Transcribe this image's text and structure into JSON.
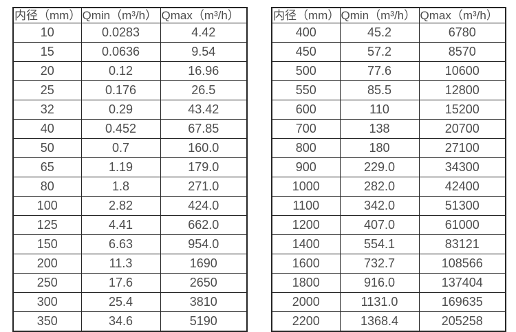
{
  "colors": {
    "border": "#262626",
    "text": "#4d4d4d",
    "background": "#ffffff"
  },
  "tables": [
    {
      "name": "small-diameters",
      "columns": [
        "内径（mm）",
        "Qmin（m³/h）",
        "Qmax（m³/h）"
      ],
      "rows": [
        [
          "10",
          "0.0283",
          "4.42"
        ],
        [
          "15",
          "0.0636",
          "9.54"
        ],
        [
          "20",
          "0.12",
          "16.96"
        ],
        [
          "25",
          "0.176",
          "26.5"
        ],
        [
          "32",
          "0.29",
          "43.42"
        ],
        [
          "40",
          "0.452",
          "67.85"
        ],
        [
          "50",
          "0.7",
          "160.0"
        ],
        [
          "65",
          "1.19",
          "179.0"
        ],
        [
          "80",
          "1.8",
          "271.0"
        ],
        [
          "100",
          "2.82",
          "424.0"
        ],
        [
          "125",
          "4.41",
          "662.0"
        ],
        [
          "150",
          "6.63",
          "954.0"
        ],
        [
          "200",
          "11.3",
          "1690"
        ],
        [
          "250",
          "17.6",
          "2650"
        ],
        [
          "300",
          "25.4",
          "3810"
        ],
        [
          "350",
          "34.6",
          "5190"
        ]
      ]
    },
    {
      "name": "large-diameters",
      "columns": [
        "内径（mm）",
        "Qmin（m³/h）",
        "Qmax（m³/h）"
      ],
      "rows": [
        [
          "400",
          "45.2",
          "6780"
        ],
        [
          "450",
          "57.2",
          "8570"
        ],
        [
          "500",
          "77.6",
          "10600"
        ],
        [
          "550",
          "85.5",
          "12800"
        ],
        [
          "600",
          "110",
          "15200"
        ],
        [
          "700",
          "138",
          "20700"
        ],
        [
          "800",
          "180",
          "27100"
        ],
        [
          "900",
          "229.0",
          "34300"
        ],
        [
          "1000",
          "282.0",
          "42400"
        ],
        [
          "1100",
          "342.0",
          "51300"
        ],
        [
          "1200",
          "407.0",
          "61000"
        ],
        [
          "1400",
          "554.1",
          "83121"
        ],
        [
          "1600",
          "732.7",
          "108566"
        ],
        [
          "1800",
          "916.0",
          "137404"
        ],
        [
          "2000",
          "1131.0",
          "169635"
        ],
        [
          "2200",
          "1368.4",
          "205258"
        ]
      ]
    }
  ]
}
